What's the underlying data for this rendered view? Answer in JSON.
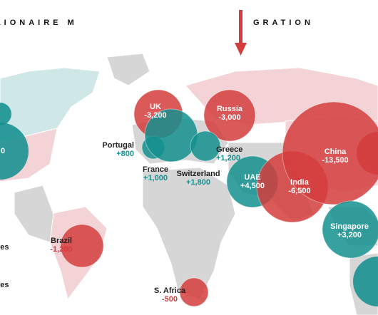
{
  "title": {
    "left": "MILLIONAIRE M",
    "right": "GRATION"
  },
  "countries": [
    {
      "name": "UK",
      "value": "-3,200"
    },
    {
      "name": "Russia",
      "value": "-3,000"
    },
    {
      "name": "Portugal",
      "value": "+800"
    },
    {
      "name": "France",
      "value": "+1,000"
    },
    {
      "name": "Switzerland",
      "value": "+1,800"
    },
    {
      "name": "Greece",
      "value": "+1,200"
    },
    {
      "name": "UAE",
      "value": "+4,500"
    },
    {
      "name": "India",
      "value": "-6,500"
    },
    {
      "name": "China",
      "value": "-13,500"
    },
    {
      "name": "Singapore",
      "value": "+3,200"
    },
    {
      "name": "Brazil",
      "value": "-1,200"
    },
    {
      "name": "S. Africa",
      "value": "-500"
    }
  ],
  "fragments": [
    "0",
    "res",
    "res"
  ]
}
